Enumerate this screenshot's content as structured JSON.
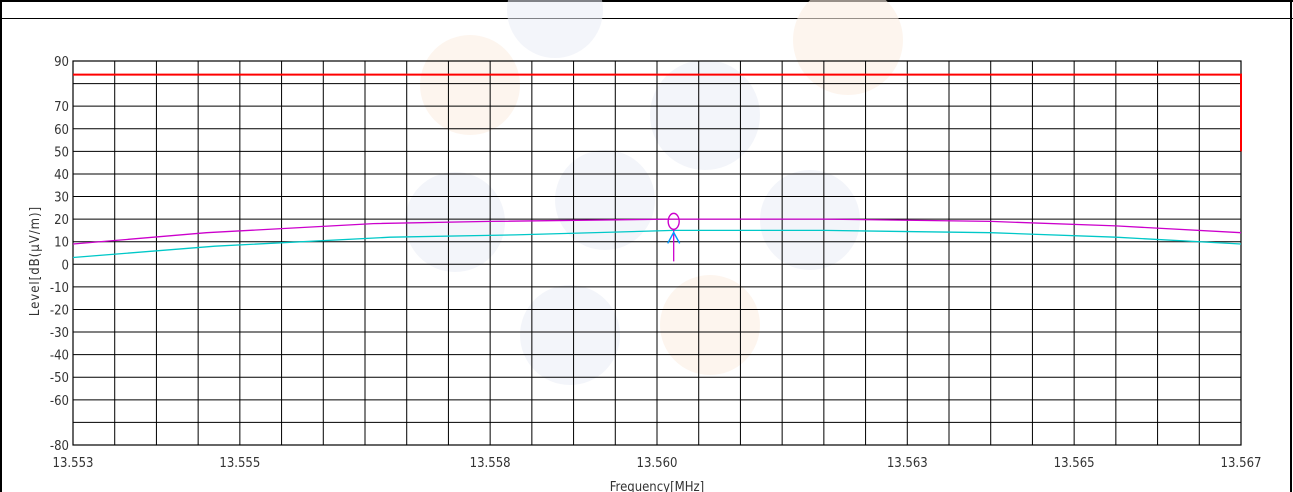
{
  "chart_data": {
    "type": "line",
    "xlabel": "Frequency[MHz]",
    "ylabel": "Level[dB(μV/m)]",
    "xlim": [
      13.553,
      13.567
    ],
    "ylim": [
      -80,
      90
    ],
    "x_ticks": [
      {
        "value": 13.553,
        "label": "13.553"
      },
      {
        "value": 13.555,
        "label": "13.555"
      },
      {
        "value": 13.558,
        "label": "13.558"
      },
      {
        "value": 13.56,
        "label": "13.560"
      },
      {
        "value": 13.563,
        "label": "13.563"
      },
      {
        "value": 13.565,
        "label": "13.565"
      },
      {
        "value": 13.567,
        "label": "13.567"
      }
    ],
    "y_ticks": [
      {
        "value": 90,
        "label": "90"
      },
      {
        "value": 70,
        "label": "70"
      },
      {
        "value": 60,
        "label": "60"
      },
      {
        "value": 50,
        "label": "50"
      },
      {
        "value": 40,
        "label": "40"
      },
      {
        "value": 30,
        "label": "30"
      },
      {
        "value": 20,
        "label": "20"
      },
      {
        "value": 10,
        "label": "10"
      },
      {
        "value": 0,
        "label": "0"
      },
      {
        "value": -10,
        "label": "-10"
      },
      {
        "value": -20,
        "label": "-20"
      },
      {
        "value": -30,
        "label": "-30"
      },
      {
        "value": -40,
        "label": "-40"
      },
      {
        "value": -50,
        "label": "-50"
      },
      {
        "value": -60,
        "label": "-60"
      },
      {
        "value": -80,
        "label": "-80"
      }
    ],
    "grid": true,
    "grid_x_divisions": 28,
    "series": [
      {
        "color": "#ff0000",
        "x": [
          13.553,
          13.567,
          13.567
        ],
        "y": [
          84,
          84,
          50
        ]
      },
      {
        "color": "#cc00cc",
        "x": [
          13.553,
          13.5546,
          13.5566,
          13.558,
          13.5602,
          13.562,
          13.564,
          13.5655,
          13.567
        ],
        "y": [
          9,
          14,
          18,
          19,
          20,
          20,
          19,
          17,
          14
        ]
      },
      {
        "color": "#00c8c8",
        "x": [
          13.553,
          13.5547,
          13.5568,
          13.5583,
          13.5602,
          13.562,
          13.564,
          13.5655,
          13.567
        ],
        "y": [
          3,
          8,
          12,
          13,
          15,
          15,
          14,
          12,
          9
        ]
      }
    ],
    "marker": {
      "x": 13.5602,
      "y": 19,
      "color_circle": "#cc00cc",
      "color_arrow": "#0099ff"
    }
  }
}
